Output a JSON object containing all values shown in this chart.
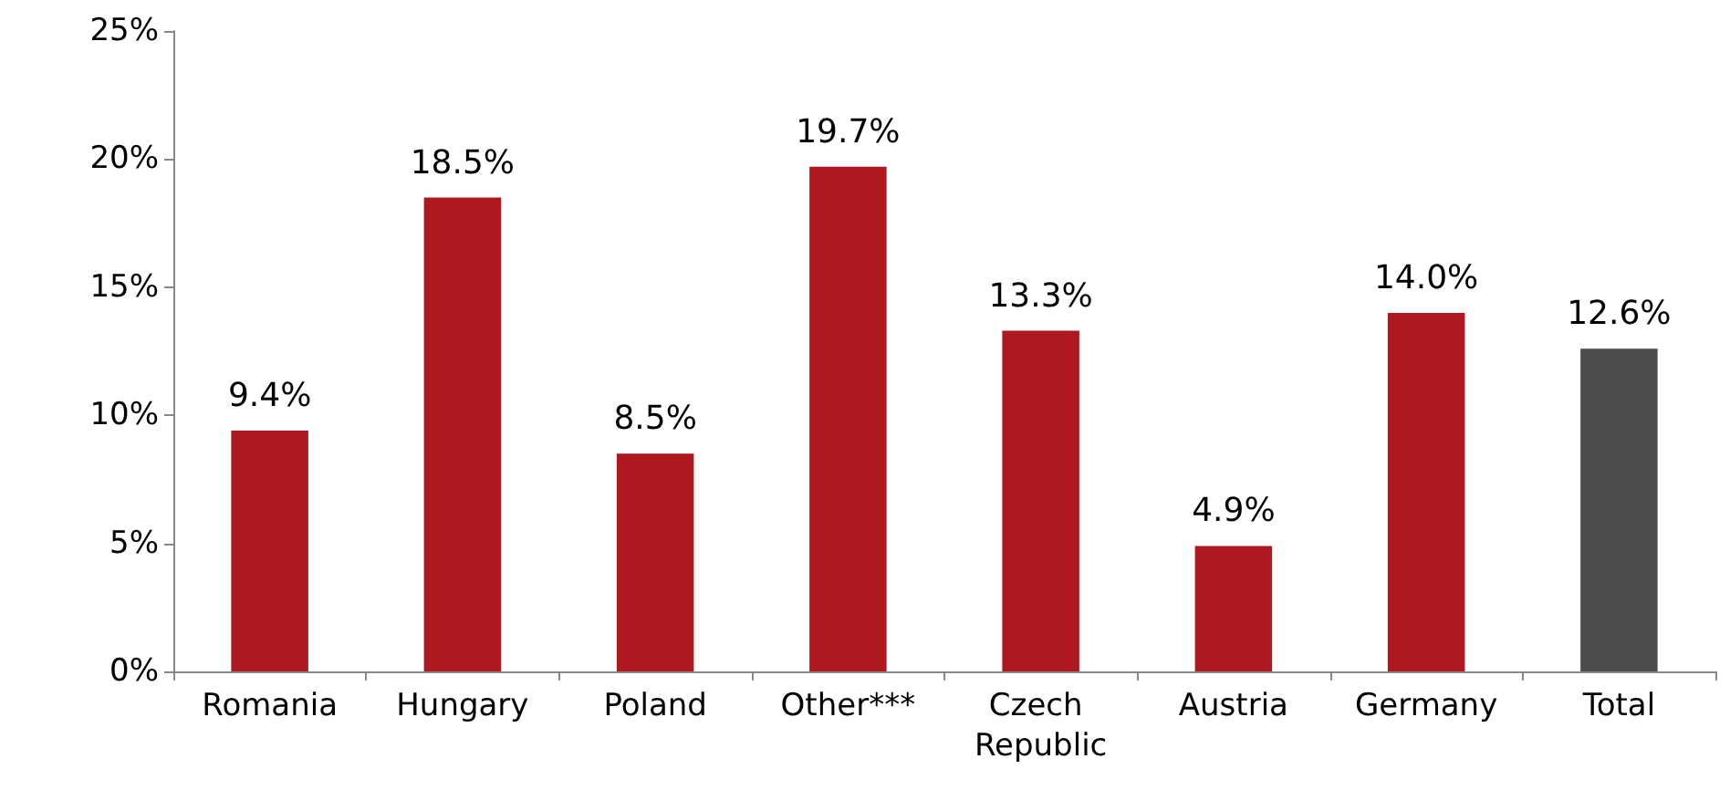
{
  "chart_data": {
    "type": "bar",
    "categories": [
      "Romania",
      "Hungary",
      "Poland",
      "Other***",
      "Czech Republic",
      "Austria",
      "Germany",
      "Total"
    ],
    "values": [
      9.4,
      18.5,
      8.5,
      19.7,
      13.3,
      4.9,
      14.0,
      12.6
    ],
    "colors": [
      "#b01820",
      "#b01820",
      "#b01820",
      "#b01820",
      "#b01820",
      "#b01820",
      "#b01820",
      "#4d4d4d"
    ],
    "value_labels": [
      "9.4%",
      "18.5%",
      "8.5%",
      "19.7%",
      "13.3%",
      "4.9%",
      "14.0%",
      "12.6%"
    ],
    "ylim": [
      0,
      25
    ],
    "yticks": [
      {
        "value": 0,
        "label": "0%"
      },
      {
        "value": 5,
        "label": "5%"
      },
      {
        "value": 10,
        "label": "10%"
      },
      {
        "value": 15,
        "label": "15%"
      },
      {
        "value": 20,
        "label": "20%"
      },
      {
        "value": 25,
        "label": "25%"
      }
    ],
    "grid": false
  }
}
